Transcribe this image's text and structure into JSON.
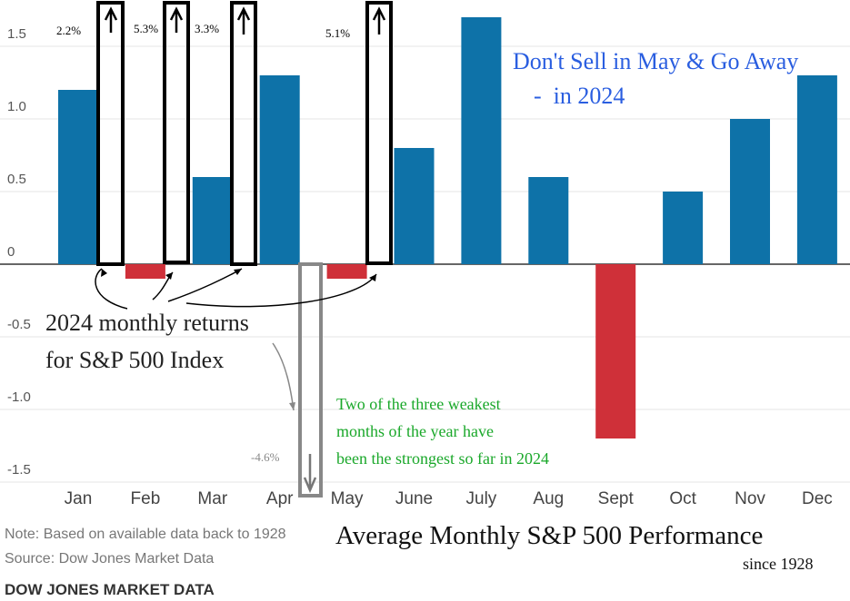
{
  "chart_data": {
    "type": "bar",
    "categories": [
      "Jan",
      "Feb",
      "Mar",
      "Apr",
      "May",
      "June",
      "July",
      "Aug",
      "Sept",
      "Oct",
      "Nov",
      "Dec"
    ],
    "values": [
      1.2,
      -0.1,
      0.6,
      1.3,
      -0.1,
      0.8,
      1.7,
      0.6,
      -1.2,
      0.5,
      1.0,
      1.3
    ],
    "color": "#0e72a8",
    "negative_color": "#cf3039",
    "ylim": [
      -1.6,
      1.8
    ],
    "yticks": [
      -1.5,
      {
        "value": -1,
        "label": "-1.0"
      },
      -0.5,
      0,
      0.5,
      {
        "value": 1,
        "label": "1.0"
      },
      1.5
    ],
    "grid": true,
    "title": "Don't Sell in May & Go Away",
    "subtitle": "-  in 2024",
    "caption": "Average Monthly S&P 500 Performance",
    "caption_note": "since 1928",
    "annotations": {
      "returns_2024": [
        "2.2%",
        "5.3%",
        "3.3%",
        "-4.6%",
        "5.1%"
      ],
      "label_lines": [
        "2024 monthly returns",
        "for S&P 500 Index"
      ],
      "green_lines": [
        "Two of the three weakest",
        "months of the year have",
        "been the strongest so far in 2024"
      ]
    },
    "note": "Note: Based on available data back to 1928",
    "source": "Source: Dow Jones Market Data",
    "footer": "DOW JONES MARKET DATA"
  }
}
